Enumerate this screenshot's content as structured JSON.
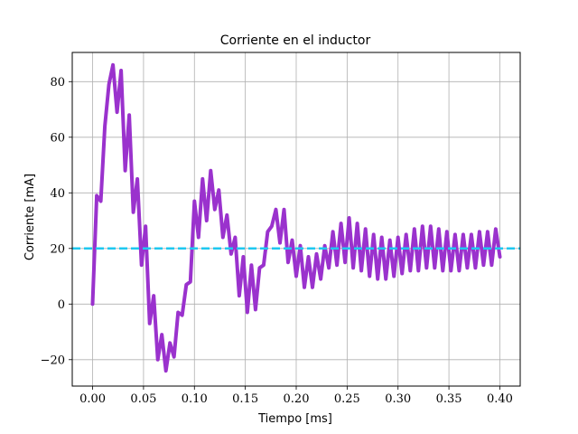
{
  "chart_data": {
    "type": "line",
    "title": "Corriente en el inductor",
    "xlabel": "Tiempo [ms]",
    "ylabel": "Corriente [mA]",
    "xlim": [
      -0.02,
      0.42
    ],
    "ylim": [
      -29.5,
      90.5
    ],
    "xticks": [
      0.0,
      0.05,
      0.1,
      0.15,
      0.2,
      0.25,
      0.3,
      0.35,
      0.4
    ],
    "xtick_labels": [
      "0.00",
      "0.05",
      "0.10",
      "0.15",
      "0.20",
      "0.25",
      "0.30",
      "0.35",
      "0.40"
    ],
    "yticks": [
      -20,
      0,
      20,
      40,
      60,
      80
    ],
    "ytick_labels": [
      "−20",
      "0",
      "20",
      "40",
      "60",
      "80"
    ],
    "grid": true,
    "series": [
      {
        "color": "#9a32cd",
        "style": "solid",
        "x": [
          0.0,
          0.004,
          0.008,
          0.012,
          0.016,
          0.02,
          0.024,
          0.028,
          0.032,
          0.036,
          0.04,
          0.044,
          0.048,
          0.052,
          0.056,
          0.06,
          0.064,
          0.068,
          0.072,
          0.076,
          0.08,
          0.084,
          0.088,
          0.092,
          0.096,
          0.1,
          0.104,
          0.108,
          0.112,
          0.116,
          0.12,
          0.124,
          0.128,
          0.132,
          0.136,
          0.14,
          0.144,
          0.148,
          0.152,
          0.156,
          0.16,
          0.164,
          0.168,
          0.172,
          0.176,
          0.18,
          0.184,
          0.188,
          0.192,
          0.196,
          0.2,
          0.204,
          0.208,
          0.212,
          0.216,
          0.22,
          0.224,
          0.228,
          0.232,
          0.236,
          0.24,
          0.244,
          0.248,
          0.252,
          0.256,
          0.26,
          0.264,
          0.268,
          0.272,
          0.276,
          0.28,
          0.284,
          0.288,
          0.292,
          0.296,
          0.3,
          0.304,
          0.308,
          0.312,
          0.316,
          0.32,
          0.324,
          0.328,
          0.332,
          0.336,
          0.34,
          0.344,
          0.348,
          0.352,
          0.356,
          0.36,
          0.364,
          0.368,
          0.372,
          0.376,
          0.38,
          0.384,
          0.388,
          0.392,
          0.396,
          0.4
        ],
        "y": [
          0,
          39,
          37,
          64,
          79,
          86,
          69,
          84,
          48,
          68,
          33,
          45,
          14,
          28,
          -7,
          3,
          -20,
          -11,
          -24,
          -14,
          -19,
          -3,
          -4,
          7,
          8,
          37,
          24,
          45,
          30,
          48,
          34,
          41,
          24,
          32,
          18,
          24,
          3,
          17,
          -3,
          14,
          -2,
          13,
          14,
          26,
          28,
          34,
          22,
          34,
          15,
          23,
          10,
          21,
          6,
          17,
          6,
          18,
          9,
          21,
          13,
          26,
          14,
          29,
          15,
          31,
          13,
          29,
          12,
          27,
          10,
          25,
          9,
          24,
          9,
          23,
          10,
          24,
          11,
          25,
          12,
          27,
          12,
          28,
          13,
          28,
          13,
          27,
          12,
          26,
          12,
          25,
          12,
          25,
          13,
          25,
          13,
          26,
          14,
          26,
          14,
          27,
          17
        ]
      },
      {
        "color": "#1ec8f0",
        "style": "dashed",
        "x": [
          -0.02,
          0.42
        ],
        "y": [
          20,
          20
        ]
      }
    ]
  }
}
